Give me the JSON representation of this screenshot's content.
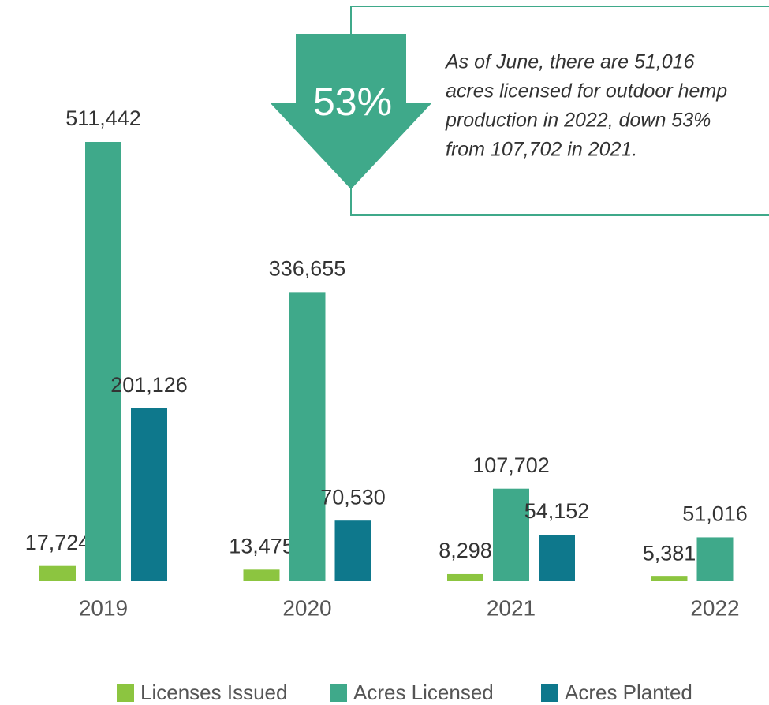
{
  "chart_data": {
    "type": "bar",
    "categories": [
      "2019",
      "2020",
      "2021",
      "2022"
    ],
    "series": [
      {
        "name": "Licenses Issued",
        "color": "#8cc540",
        "values": [
          17724,
          13475,
          8298,
          5381
        ],
        "value_labels": [
          "17,724",
          "13,475",
          "8,298",
          "5,381"
        ]
      },
      {
        "name": "Acres Licensed",
        "color": "#3fa98a",
        "values": [
          511442,
          336655,
          107702,
          51016
        ],
        "value_labels": [
          "511,442",
          "336,655",
          "107,702",
          "51,016"
        ]
      },
      {
        "name": "Acres Planted",
        "color": "#0e788c",
        "values": [
          201126,
          70530,
          54152,
          null
        ],
        "value_labels": [
          "201,126",
          "70,530",
          "54,152",
          null
        ]
      }
    ],
    "callout": "53%",
    "annotation_lines": [
      "As of June, there are 51,016",
      "acres licensed for outdoor hemp",
      "production in 2022, down 53%",
      "from 107,702 in 2021."
    ]
  }
}
